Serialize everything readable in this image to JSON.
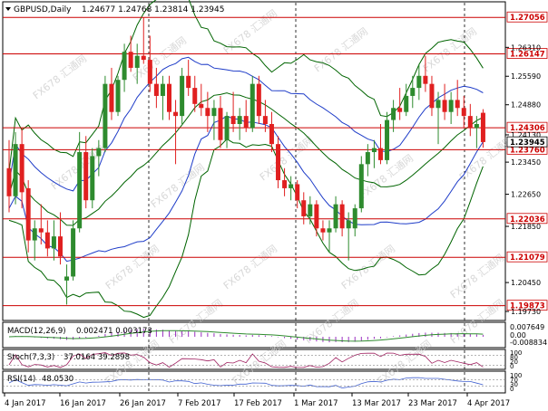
{
  "symbol_info": {
    "symbol": "GBPUSD,Daily",
    "values": "1.24677 1.24768 1.23814 1.23945"
  },
  "watermark": {
    "text": "FX678 汇通网"
  },
  "colors": {
    "background": "#ffffff",
    "grid": "#000000",
    "bull_candle": "#2e8b2e",
    "bear_candle": "#e02020",
    "level_line": "#cc0000",
    "level_label_bg": "#ffffff",
    "level_label_text": "#cc0000",
    "bollinger_outer": "#006400",
    "bollinger_inner": "#1e3cc8",
    "macd": "#9a30c0",
    "stoch": "#a02060",
    "rsi": "#4060d0",
    "price_label_bg": "#ffffff"
  },
  "chart_data": {
    "type": "candlestick",
    "price_axis_ticks": [
      "1.26310",
      "1.25590",
      "1.24880",
      "1.24130",
      "1.23450",
      "1.22650",
      "1.21850",
      "1.20450",
      "1.19730"
    ],
    "level_lines": [
      {
        "label": "1.27056",
        "value": 1.27056
      },
      {
        "label": "1.26147",
        "value": 1.26147
      },
      {
        "label": "1.24306",
        "value": 1.24306
      },
      {
        "label": "1.23760",
        "value": 1.2376
      },
      {
        "label": "1.22036",
        "value": 1.22036
      },
      {
        "label": "1.21079",
        "value": 1.21079
      },
      {
        "label": "1.19873",
        "value": 1.19873
      }
    ],
    "current_price": {
      "label": "1.23945",
      "value": 1.23945
    },
    "date_labels": [
      "4 Jan 2017",
      "16 Jan 2017",
      "26 Jan 2017",
      "7 Feb 2017",
      "17 Feb 2017",
      "1 Mar 2017",
      "13 Mar 2017",
      "23 Mar 2017",
      "4 Apr 2017"
    ],
    "candles": [
      {
        "o": 1.233,
        "h": 1.24,
        "l": 1.222,
        "c": 1.226
      },
      {
        "o": 1.226,
        "h": 1.242,
        "l": 1.224,
        "c": 1.239
      },
      {
        "o": 1.239,
        "h": 1.243,
        "l": 1.223,
        "c": 1.227
      },
      {
        "o": 1.228,
        "h": 1.23,
        "l": 1.212,
        "c": 1.215
      },
      {
        "o": 1.215,
        "h": 1.22,
        "l": 1.21,
        "c": 1.218
      },
      {
        "o": 1.218,
        "h": 1.224,
        "l": 1.214,
        "c": 1.217
      },
      {
        "o": 1.217,
        "h": 1.22,
        "l": 1.211,
        "c": 1.213
      },
      {
        "o": 1.213,
        "h": 1.22,
        "l": 1.21,
        "c": 1.216
      },
      {
        "o": 1.216,
        "h": 1.222,
        "l": 1.209,
        "c": 1.211
      },
      {
        "o": 1.205,
        "h": 1.209,
        "l": 1.199,
        "c": 1.206
      },
      {
        "o": 1.206,
        "h": 1.22,
        "l": 1.205,
        "c": 1.218
      },
      {
        "o": 1.218,
        "h": 1.242,
        "l": 1.217,
        "c": 1.237
      },
      {
        "o": 1.237,
        "h": 1.241,
        "l": 1.223,
        "c": 1.225
      },
      {
        "o": 1.225,
        "h": 1.238,
        "l": 1.223,
        "c": 1.236
      },
      {
        "o": 1.236,
        "h": 1.24,
        "l": 1.231,
        "c": 1.238
      },
      {
        "o": 1.238,
        "h": 1.256,
        "l": 1.237,
        "c": 1.254
      },
      {
        "o": 1.254,
        "h": 1.258,
        "l": 1.245,
        "c": 1.247
      },
      {
        "o": 1.247,
        "h": 1.256,
        "l": 1.246,
        "c": 1.255
      },
      {
        "o": 1.255,
        "h": 1.264,
        "l": 1.252,
        "c": 1.262
      },
      {
        "o": 1.262,
        "h": 1.266,
        "l": 1.257,
        "c": 1.258
      },
      {
        "o": 1.258,
        "h": 1.264,
        "l": 1.254,
        "c": 1.261
      },
      {
        "o": 1.261,
        "h": 1.2705,
        "l": 1.259,
        "c": 1.26
      },
      {
        "o": 1.26,
        "h": 1.266,
        "l": 1.252,
        "c": 1.254
      },
      {
        "o": 1.254,
        "h": 1.258,
        "l": 1.248,
        "c": 1.251
      },
      {
        "o": 1.251,
        "h": 1.256,
        "l": 1.245,
        "c": 1.254
      },
      {
        "o": 1.254,
        "h": 1.256,
        "l": 1.245,
        "c": 1.247
      },
      {
        "o": 1.247,
        "h": 1.25,
        "l": 1.234,
        "c": 1.246
      },
      {
        "o": 1.246,
        "h": 1.258,
        "l": 1.244,
        "c": 1.256
      },
      {
        "o": 1.256,
        "h": 1.26,
        "l": 1.251,
        "c": 1.253
      },
      {
        "o": 1.253,
        "h": 1.256,
        "l": 1.247,
        "c": 1.249
      },
      {
        "o": 1.249,
        "h": 1.254,
        "l": 1.246,
        "c": 1.248
      },
      {
        "o": 1.248,
        "h": 1.252,
        "l": 1.242,
        "c": 1.246
      },
      {
        "o": 1.246,
        "h": 1.25,
        "l": 1.24,
        "c": 1.248
      },
      {
        "o": 1.248,
        "h": 1.251,
        "l": 1.238,
        "c": 1.24
      },
      {
        "o": 1.24,
        "h": 1.247,
        "l": 1.238,
        "c": 1.246
      },
      {
        "o": 1.246,
        "h": 1.252,
        "l": 1.242,
        "c": 1.244
      },
      {
        "o": 1.244,
        "h": 1.248,
        "l": 1.24,
        "c": 1.246
      },
      {
        "o": 1.246,
        "h": 1.25,
        "l": 1.242,
        "c": 1.243
      },
      {
        "o": 1.243,
        "h": 1.256,
        "l": 1.242,
        "c": 1.254
      },
      {
        "o": 1.254,
        "h": 1.256,
        "l": 1.244,
        "c": 1.246
      },
      {
        "o": 1.246,
        "h": 1.25,
        "l": 1.242,
        "c": 1.244
      },
      {
        "o": 1.244,
        "h": 1.247,
        "l": 1.237,
        "c": 1.239
      },
      {
        "o": 1.239,
        "h": 1.241,
        "l": 1.228,
        "c": 1.23
      },
      {
        "o": 1.23,
        "h": 1.233,
        "l": 1.226,
        "c": 1.228
      },
      {
        "o": 1.228,
        "h": 1.231,
        "l": 1.225,
        "c": 1.229
      },
      {
        "o": 1.229,
        "h": 1.23,
        "l": 1.223,
        "c": 1.225
      },
      {
        "o": 1.225,
        "h": 1.227,
        "l": 1.219,
        "c": 1.221
      },
      {
        "o": 1.221,
        "h": 1.226,
        "l": 1.219,
        "c": 1.224
      },
      {
        "o": 1.224,
        "h": 1.225,
        "l": 1.216,
        "c": 1.218
      },
      {
        "o": 1.218,
        "h": 1.22,
        "l": 1.215,
        "c": 1.217
      },
      {
        "o": 1.217,
        "h": 1.22,
        "l": 1.212,
        "c": 1.218
      },
      {
        "o": 1.218,
        "h": 1.226,
        "l": 1.217,
        "c": 1.224
      },
      {
        "o": 1.224,
        "h": 1.225,
        "l": 1.216,
        "c": 1.218
      },
      {
        "o": 1.218,
        "h": 1.222,
        "l": 1.21,
        "c": 1.22
      },
      {
        "o": 1.218,
        "h": 1.224,
        "l": 1.216,
        "c": 1.223
      },
      {
        "o": 1.223,
        "h": 1.236,
        "l": 1.222,
        "c": 1.234
      },
      {
        "o": 1.234,
        "h": 1.239,
        "l": 1.231,
        "c": 1.237
      },
      {
        "o": 1.237,
        "h": 1.24,
        "l": 1.233,
        "c": 1.238
      },
      {
        "o": 1.238,
        "h": 1.244,
        "l": 1.234,
        "c": 1.235
      },
      {
        "o": 1.235,
        "h": 1.247,
        "l": 1.234,
        "c": 1.245
      },
      {
        "o": 1.245,
        "h": 1.25,
        "l": 1.242,
        "c": 1.248
      },
      {
        "o": 1.248,
        "h": 1.253,
        "l": 1.245,
        "c": 1.247
      },
      {
        "o": 1.247,
        "h": 1.254,
        "l": 1.246,
        "c": 1.251
      },
      {
        "o": 1.251,
        "h": 1.256,
        "l": 1.248,
        "c": 1.253
      },
      {
        "o": 1.253,
        "h": 1.259,
        "l": 1.25,
        "c": 1.256
      },
      {
        "o": 1.256,
        "h": 1.261,
        "l": 1.252,
        "c": 1.254
      },
      {
        "o": 1.254,
        "h": 1.256,
        "l": 1.246,
        "c": 1.248
      },
      {
        "o": 1.248,
        "h": 1.252,
        "l": 1.239,
        "c": 1.25
      },
      {
        "o": 1.25,
        "h": 1.254,
        "l": 1.245,
        "c": 1.247
      },
      {
        "o": 1.247,
        "h": 1.252,
        "l": 1.244,
        "c": 1.25
      },
      {
        "o": 1.25,
        "h": 1.255,
        "l": 1.246,
        "c": 1.248
      },
      {
        "o": 1.248,
        "h": 1.251,
        "l": 1.243,
        "c": 1.246
      },
      {
        "o": 1.246,
        "h": 1.249,
        "l": 1.241,
        "c": 1.243
      },
      {
        "o": 1.243,
        "h": 1.246,
        "l": 1.238,
        "c": 1.244
      },
      {
        "o": 1.2468,
        "h": 1.2477,
        "l": 1.2381,
        "c": 1.2395
      }
    ],
    "indicators": [
      {
        "name": "MACD(12,26,9)",
        "values": "0.002471 0.003173",
        "axis_ticks": [
          "0.007649",
          "0.00",
          "-0.008834"
        ]
      },
      {
        "name": "Stoch(7,3,3)",
        "values": "37.0164 39.2898",
        "axis_ticks": [
          "100",
          "80",
          "20",
          "0"
        ]
      },
      {
        "name": "RSI(14)",
        "values": "48.0530",
        "axis_ticks": [
          "100",
          "70",
          "30",
          "0"
        ]
      }
    ]
  }
}
